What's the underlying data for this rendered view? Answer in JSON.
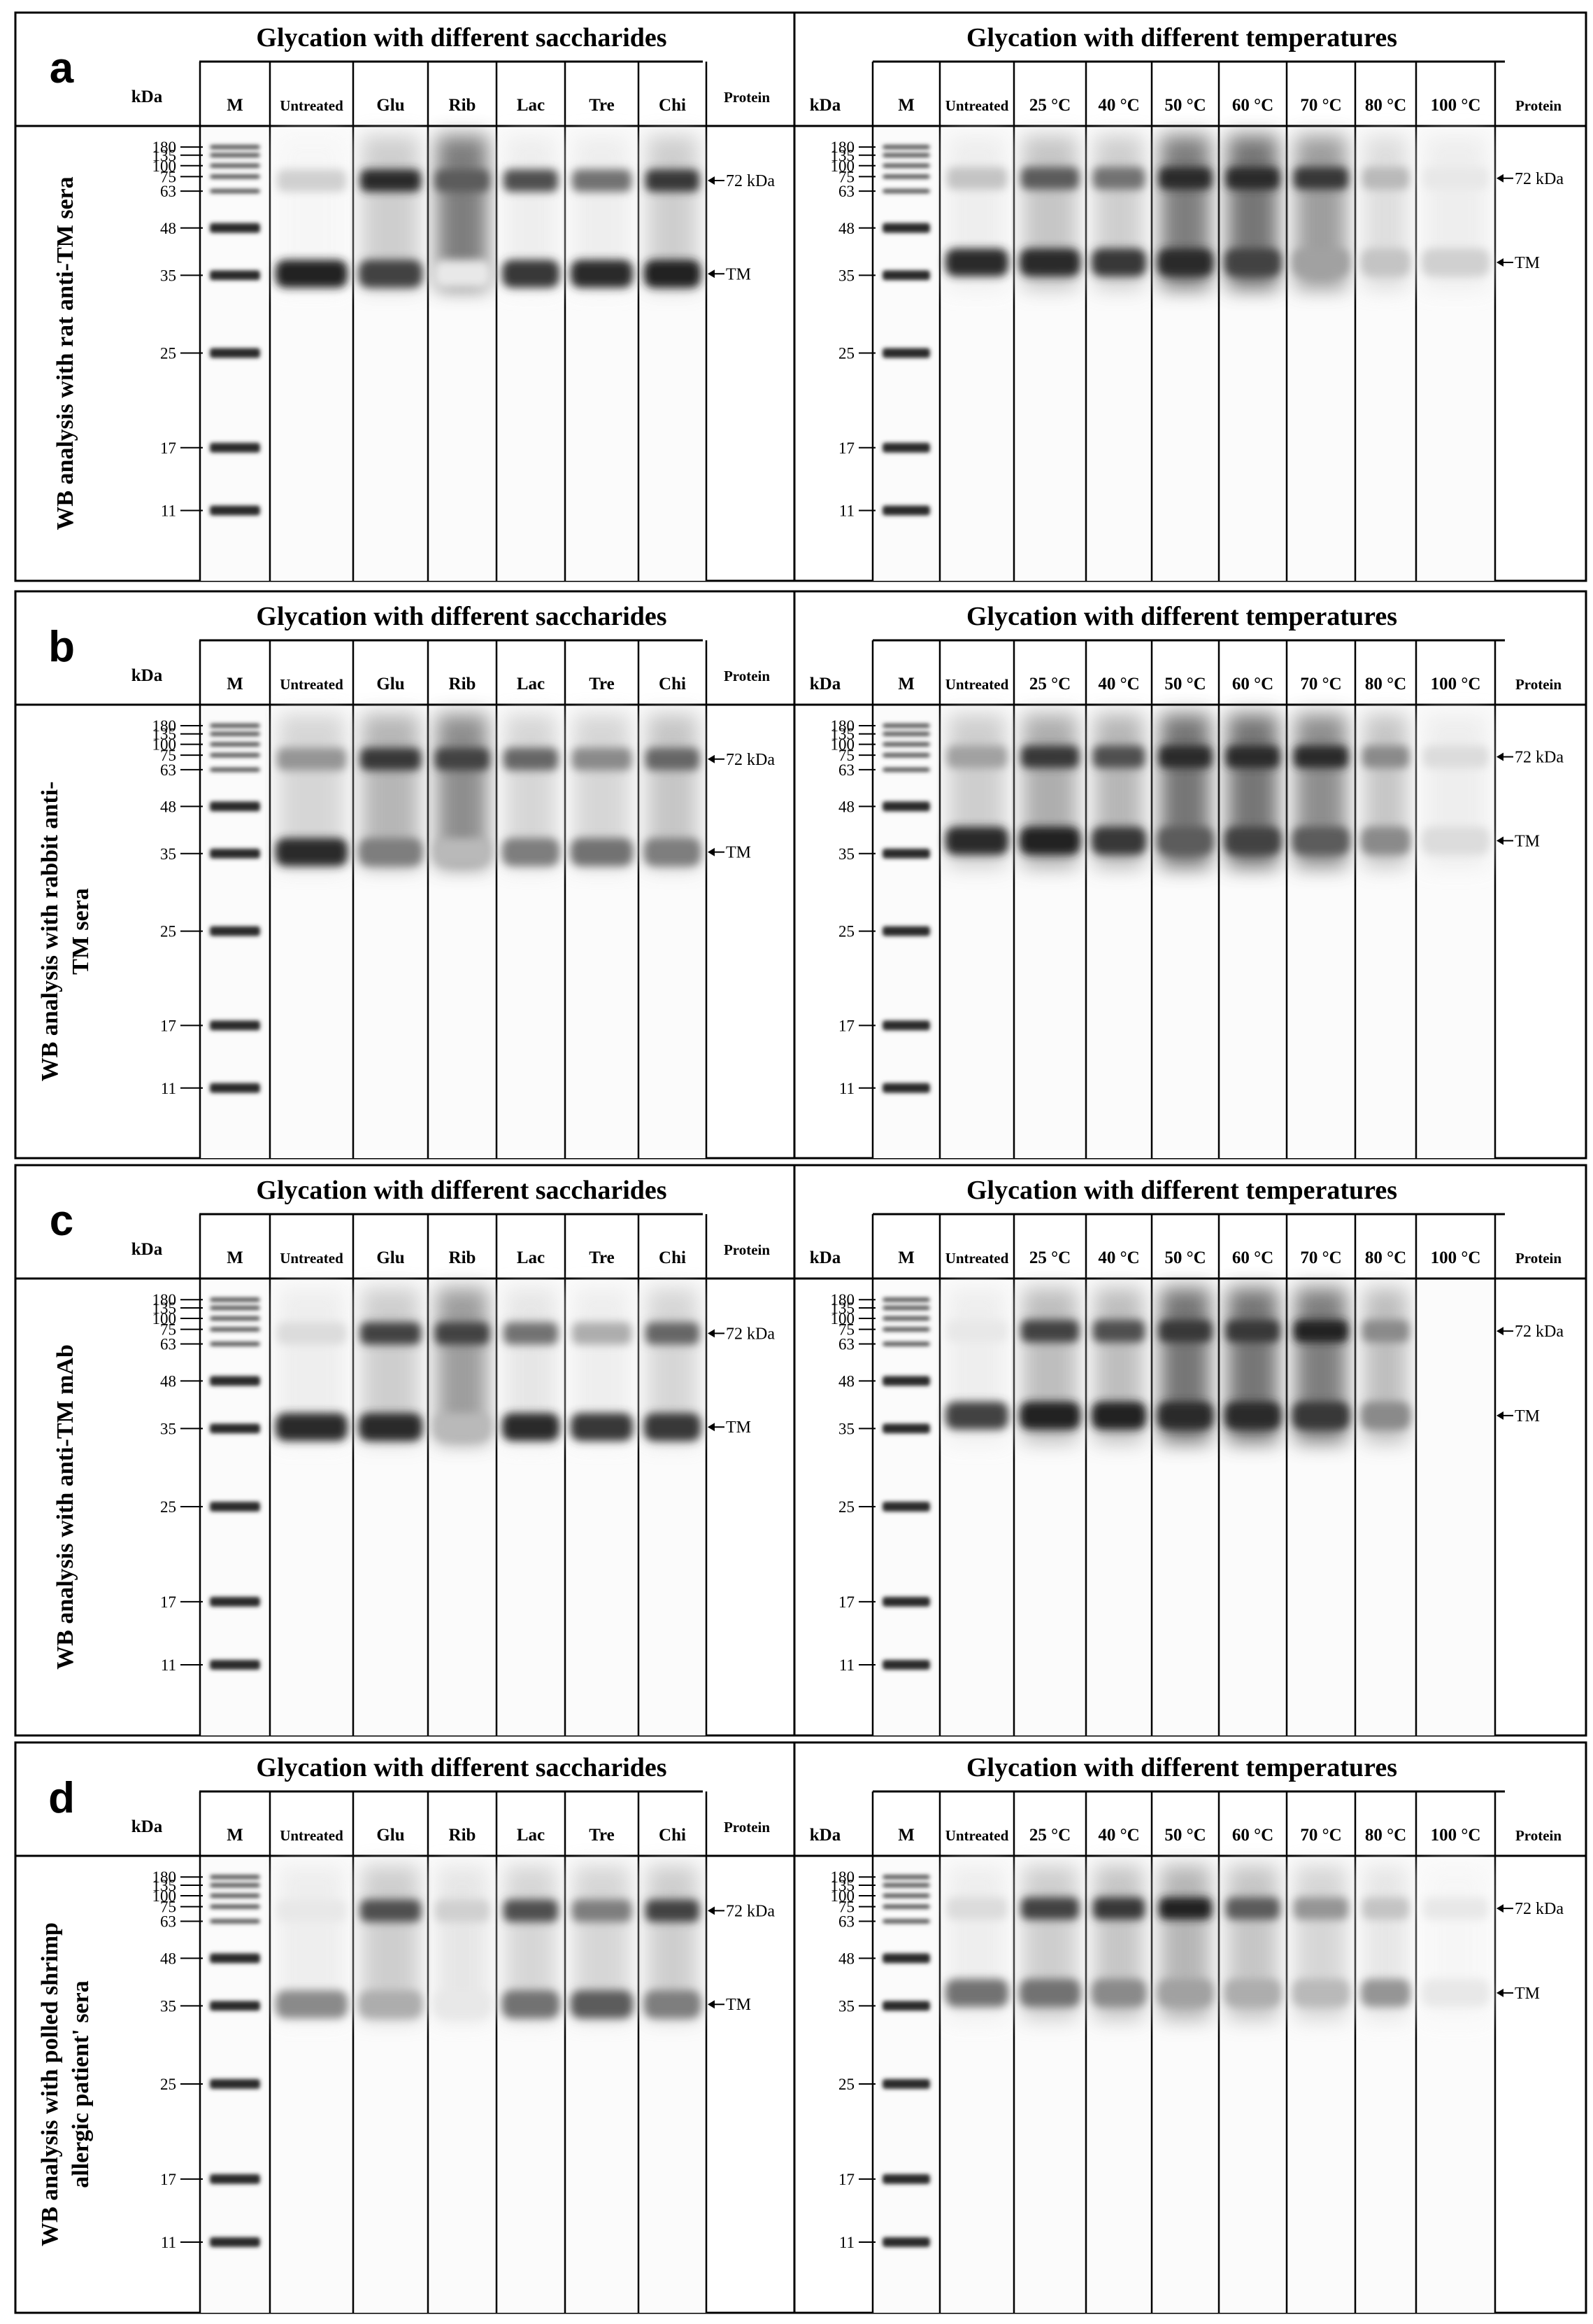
{
  "panels": [
    {
      "letter": "a",
      "side_label": [
        "WB analysis with rat anti-TM sera"
      ],
      "left_header": "Glycation with different saccharides",
      "right_header": "Glycation with different temperatures",
      "lanes_left": [
        "M",
        "Untreated",
        "Glu",
        "Rib",
        "Lac",
        "Tre",
        "Chi"
      ],
      "lanes_right": [
        "M",
        "Untreated",
        "25 °C",
        "40 °C",
        "50 °C",
        "60 °C",
        "70 °C",
        "80 °C",
        "100 °C"
      ],
      "kda_label": "kDa",
      "protein_label": "Protein",
      "annotations": [
        "72 kDa",
        "TM"
      ]
    },
    {
      "letter": "b",
      "side_label": [
        "WB analysis with rabbit anti-",
        "TM sera"
      ],
      "left_header": "Glycation with different saccharides",
      "right_header": "Glycation with different temperatures",
      "lanes_left": [
        "M",
        "Untreated",
        "Glu",
        "Rib",
        "Lac",
        "Tre",
        "Chi"
      ],
      "lanes_right": [
        "M",
        "Untreated",
        "25 °C",
        "40 °C",
        "50 °C",
        "60 °C",
        "70 °C",
        "80 °C",
        "100 °C"
      ],
      "kda_label": "kDa",
      "protein_label": "Protein",
      "annotations": [
        "72 kDa",
        "TM"
      ]
    },
    {
      "letter": "c",
      "side_label": [
        "WB analysis with anti-TM mAb"
      ],
      "left_header": "Glycation with different saccharides",
      "right_header": "Glycation with different temperatures",
      "lanes_left": [
        "M",
        "Untreated",
        "Glu",
        "Rib",
        "Lac",
        "Tre",
        "Chi"
      ],
      "lanes_right": [
        "M",
        "Untreated",
        "25 °C",
        "40 °C",
        "50 °C",
        "60 °C",
        "70 °C",
        "80 °C",
        "100 °C"
      ],
      "kda_label": "kDa",
      "protein_label": "Protein",
      "annotations": [
        "72 kDa",
        "TM"
      ]
    },
    {
      "letter": "d",
      "side_label": [
        "WB analysis with polled shrimp",
        "allergic patient' sera"
      ],
      "left_header": "Glycation with different saccharides",
      "right_header": "Glycation with different temperatures",
      "lanes_left": [
        "M",
        "Untreated",
        "Glu",
        "Rib",
        "Lac",
        "Tre",
        "Chi"
      ],
      "lanes_right": [
        "M",
        "Untreated",
        "25 °C",
        "40 °C",
        "50 °C",
        "60 °C",
        "70 °C",
        "80 °C",
        "100 °C"
      ],
      "kda_label": "kDa",
      "protein_label": "Protein",
      "annotations": [
        "72 kDa",
        "TM"
      ]
    }
  ],
  "markers_kda": [
    "180",
    "135",
    "100",
    "75",
    "63",
    "48",
    "35",
    "25",
    "17",
    "11"
  ],
  "band_intensity": {
    "note_levels_0_to_1": true,
    "left": [
      {
        "tm": [
          0.95,
          0.8,
          0.1,
          0.85,
          0.9,
          0.95
        ],
        "dimer": [
          0.2,
          0.9,
          0.7,
          0.75,
          0.6,
          0.85
        ],
        "smear": [
          0.05,
          0.3,
          0.8,
          0.1,
          0.1,
          0.3
        ]
      },
      {
        "tm": [
          0.9,
          0.55,
          0.3,
          0.55,
          0.6,
          0.55
        ],
        "dimer": [
          0.45,
          0.85,
          0.8,
          0.65,
          0.5,
          0.65
        ],
        "smear": [
          0.25,
          0.45,
          0.7,
          0.25,
          0.25,
          0.35
        ]
      },
      {
        "tm": [
          0.9,
          0.9,
          0.3,
          0.9,
          0.85,
          0.85
        ],
        "dimer": [
          0.15,
          0.8,
          0.8,
          0.6,
          0.35,
          0.65
        ],
        "smear": [
          0.1,
          0.3,
          0.6,
          0.15,
          0.1,
          0.25
        ]
      },
      {
        "tm": [
          0.5,
          0.35,
          0.1,
          0.6,
          0.7,
          0.55
        ],
        "dimer": [
          0.1,
          0.75,
          0.2,
          0.75,
          0.55,
          0.8
        ],
        "smear": [
          0.1,
          0.3,
          0.15,
          0.25,
          0.25,
          0.3
        ]
      }
    ],
    "right": [
      {
        "tm": [
          0.9,
          0.9,
          0.85,
          0.9,
          0.8,
          0.4,
          0.25,
          0.2
        ],
        "dimer": [
          0.25,
          0.7,
          0.6,
          0.9,
          0.9,
          0.85,
          0.3,
          0.1
        ],
        "smear": [
          0.1,
          0.35,
          0.3,
          0.8,
          0.85,
          0.6,
          0.2,
          0.1
        ]
      },
      {
        "tm": [
          0.9,
          0.95,
          0.85,
          0.7,
          0.8,
          0.7,
          0.5,
          0.15
        ],
        "dimer": [
          0.4,
          0.85,
          0.75,
          0.9,
          0.9,
          0.9,
          0.5,
          0.15
        ],
        "smear": [
          0.3,
          0.5,
          0.45,
          0.85,
          0.85,
          0.7,
          0.35,
          0.1
        ]
      },
      {
        "tm": [
          0.8,
          0.95,
          0.95,
          0.9,
          0.9,
          0.85,
          0.5,
          0.0
        ],
        "dimer": [
          0.1,
          0.8,
          0.75,
          0.85,
          0.85,
          0.95,
          0.5,
          0.0
        ],
        "smear": [
          0.1,
          0.4,
          0.4,
          0.85,
          0.85,
          0.8,
          0.4,
          0.0
        ]
      },
      {
        "tm": [
          0.6,
          0.6,
          0.5,
          0.4,
          0.35,
          0.3,
          0.45,
          0.1
        ],
        "dimer": [
          0.15,
          0.8,
          0.85,
          0.95,
          0.7,
          0.45,
          0.25,
          0.1
        ],
        "smear": [
          0.1,
          0.3,
          0.35,
          0.45,
          0.35,
          0.25,
          0.15,
          0.05
        ]
      }
    ]
  }
}
